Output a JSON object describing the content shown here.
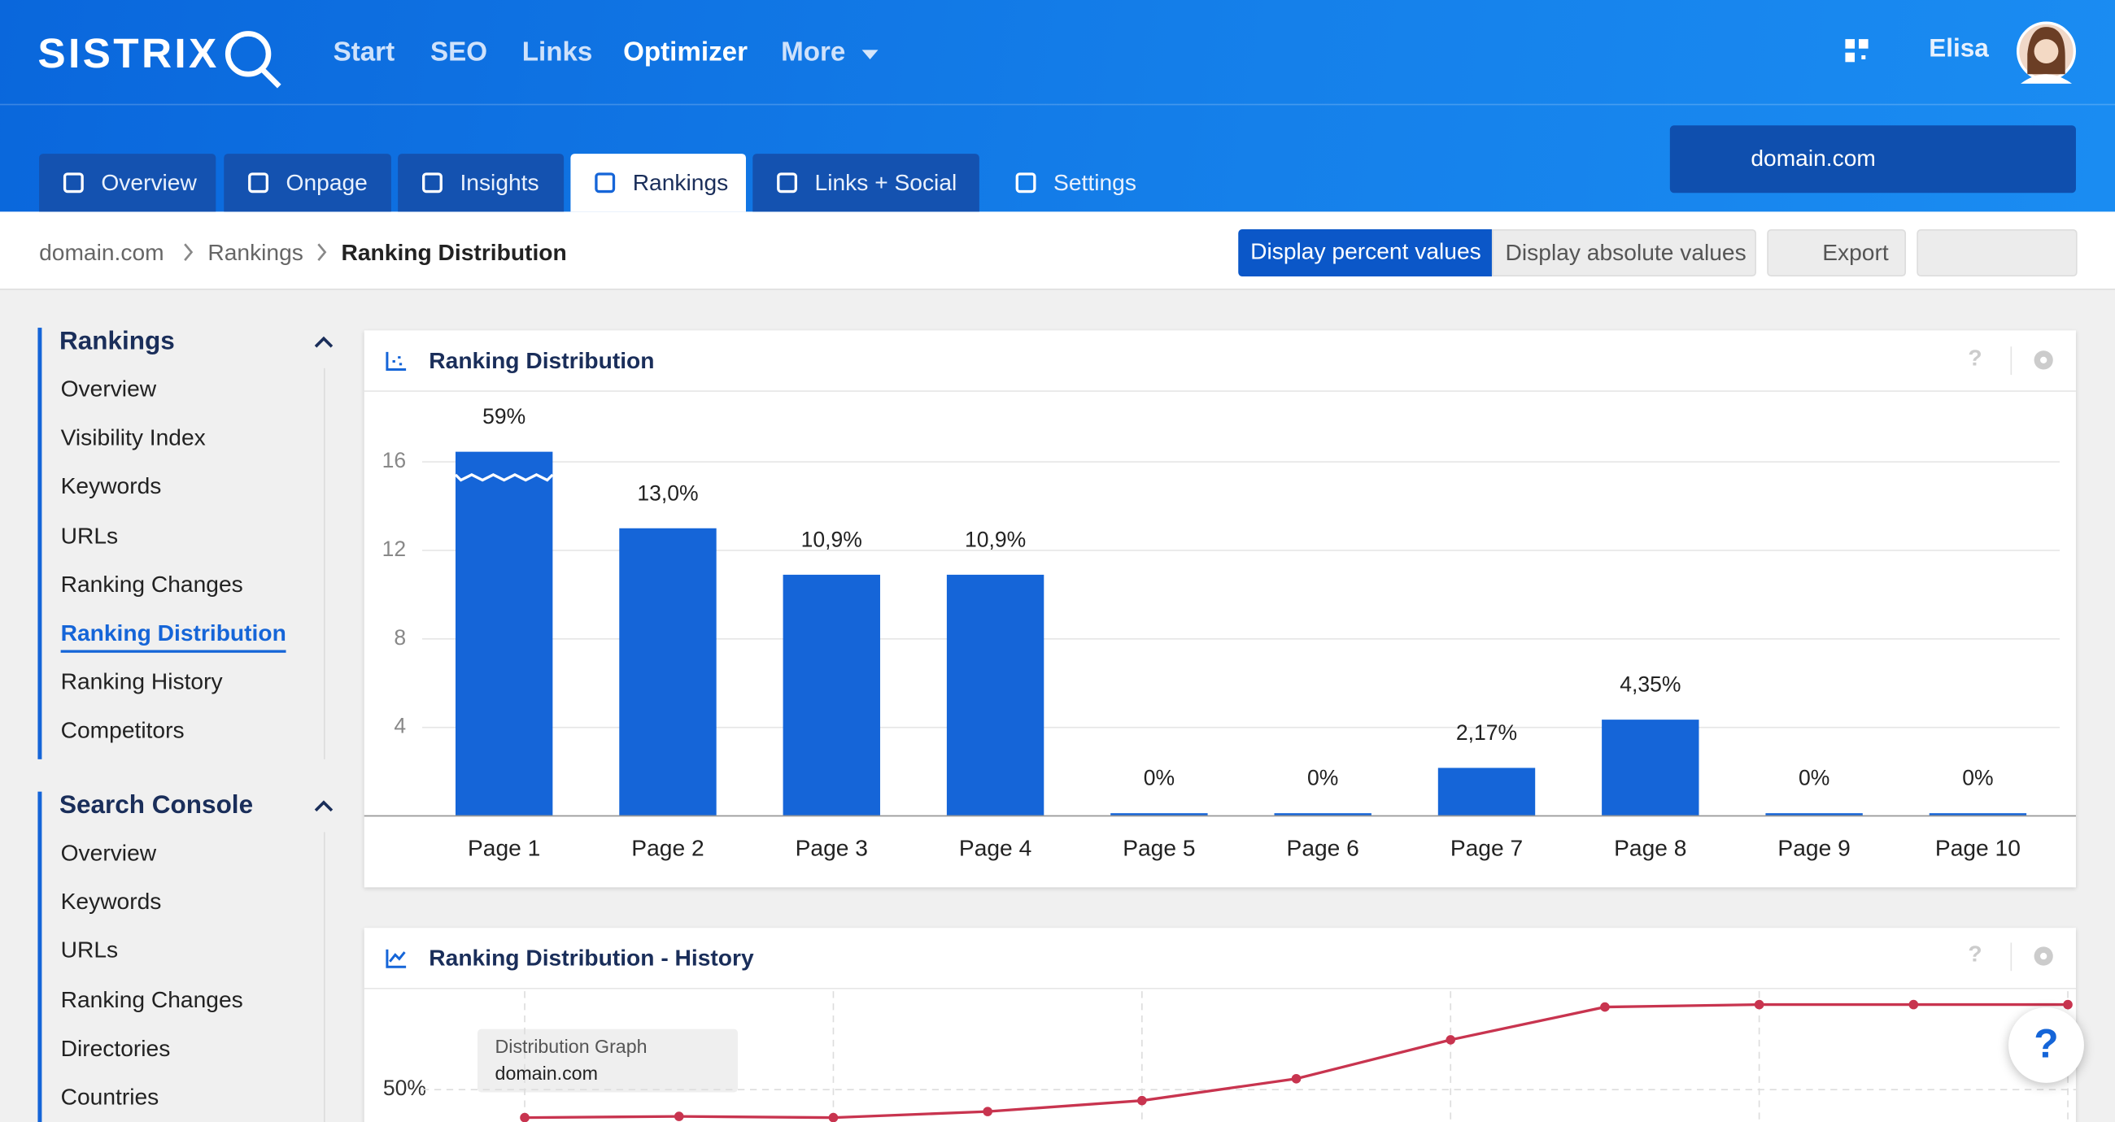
{
  "header": {
    "logo": "SISTRIX",
    "nav": [
      "Start",
      "SEO",
      "Links",
      "Optimizer",
      "More"
    ],
    "user": "Elisa"
  },
  "tabs": [
    "Overview",
    "Onpage",
    "Insights",
    "Rankings",
    "Links + Social",
    "Settings"
  ],
  "domain_select": "domain.com",
  "breadcrumb": [
    "domain.com",
    "Rankings",
    "Ranking Distribution"
  ],
  "toolbar": {
    "percent": "Display percent values",
    "absolute": "Display absolute values",
    "export": "Export"
  },
  "help_icon": "?",
  "sidebar": [
    {
      "title": "Rankings",
      "items": [
        "Overview",
        "Visibility Index",
        "Keywords",
        "URLs",
        "Ranking Changes",
        "Ranking Distribution",
        "Ranking History",
        "Competitors"
      ]
    },
    {
      "title": "Search Console",
      "items": [
        "Overview",
        "Keywords",
        "URLs",
        "Ranking Changes",
        "Directories",
        "Countries"
      ]
    }
  ],
  "chart_data": [
    {
      "type": "bar",
      "title": "Ranking Distribution",
      "categories": [
        "Page 1",
        "Page 2",
        "Page 3",
        "Page 4",
        "Page 5",
        "Page 6",
        "Page 7",
        "Page 8",
        "Page 9",
        "Page 10"
      ],
      "values": [
        59,
        13.0,
        10.9,
        10.9,
        0,
        0,
        2.17,
        4.35,
        0,
        0
      ],
      "value_labels": [
        "59%",
        "13,0%",
        "10,9%",
        "10,9%",
        "0%",
        "0%",
        "2,17%",
        "4,35%",
        "0%",
        "0%"
      ],
      "color": "#1565d8",
      "ylim": [
        0,
        19.2
      ],
      "yticks": [
        4,
        8,
        12,
        16
      ],
      "grid": true
    },
    {
      "type": "line",
      "title": "Ranking Distribution - History",
      "tooltip_title": "Distribution Graph",
      "series": [
        {
          "name": "domain.com",
          "color": "#c8344f",
          "values": [
            47.7,
            47.8,
            47.7,
            48.2,
            49.1,
            50.9,
            54.1,
            56.8,
            57,
            57,
            57
          ]
        }
      ],
      "ylim": [
        40.9,
        58.1
      ],
      "yticks": [
        {
          "value": 50,
          "label": "50%"
        }
      ],
      "grid": true
    }
  ]
}
